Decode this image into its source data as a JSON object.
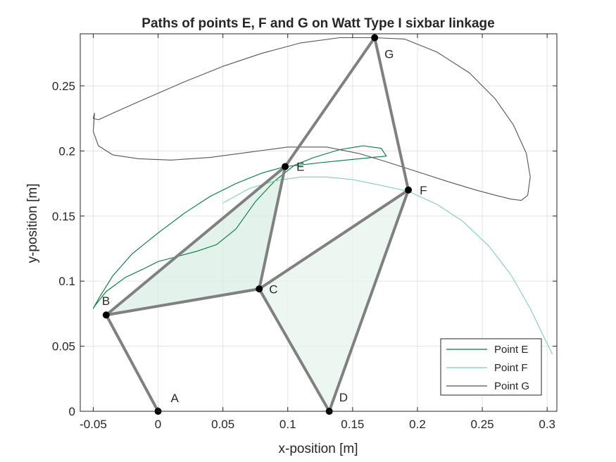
{
  "chart_data": {
    "type": "line",
    "title": "Paths of points E, F and G on Watt Type I sixbar linkage",
    "xlabel": "x-position [m]",
    "ylabel": "y-position [m]",
    "xlim": [
      -0.06,
      0.3075
    ],
    "ylim": [
      0,
      0.29
    ],
    "xticks": [
      -0.05,
      0,
      0.05,
      0.1,
      0.15,
      0.2,
      0.25,
      0.3
    ],
    "xtick_labels": [
      "-0.05",
      "0",
      "0.05",
      "0.1",
      "0.15",
      "0.2",
      "0.25",
      "0.3"
    ],
    "yticks": [
      0,
      0.05,
      0.1,
      0.15,
      0.2,
      0.25
    ],
    "ytick_labels": [
      "0",
      "0.05",
      "0.1",
      "0.15",
      "0.2",
      "0.25"
    ],
    "grid": true,
    "legend_position": "bottom-right",
    "series": [
      {
        "name": "Point E",
        "color": "#007a3d",
        "points": [
          [
            0.098,
            0.188
          ],
          [
            0.08,
            0.183
          ],
          [
            0.06,
            0.175
          ],
          [
            0.04,
            0.165
          ],
          [
            0.02,
            0.152
          ],
          [
            0.0,
            0.137
          ],
          [
            -0.02,
            0.121
          ],
          [
            -0.035,
            0.104
          ],
          [
            -0.045,
            0.088
          ],
          [
            -0.05,
            0.079
          ],
          [
            -0.048,
            0.082
          ],
          [
            -0.04,
            0.092
          ],
          [
            -0.025,
            0.103
          ],
          [
            -0.01,
            0.11
          ],
          [
            0.0,
            0.115
          ],
          [
            0.015,
            0.119
          ],
          [
            0.03,
            0.123
          ],
          [
            0.045,
            0.128
          ],
          [
            0.06,
            0.14
          ],
          [
            0.075,
            0.161
          ],
          [
            0.09,
            0.177
          ],
          [
            0.105,
            0.189
          ],
          [
            0.12,
            0.195
          ],
          [
            0.14,
            0.201
          ],
          [
            0.158,
            0.204
          ],
          [
            0.172,
            0.202
          ],
          [
            0.176,
            0.196
          ],
          [
            0.165,
            0.195
          ],
          [
            0.145,
            0.193
          ],
          [
            0.125,
            0.191
          ],
          [
            0.108,
            0.189
          ],
          [
            0.098,
            0.188
          ]
        ]
      },
      {
        "name": "Point F",
        "color": "#7fd0b0",
        "points": [
          [
            0.05,
            0.16
          ],
          [
            0.07,
            0.171
          ],
          [
            0.09,
            0.177
          ],
          [
            0.11,
            0.18
          ],
          [
            0.13,
            0.18
          ],
          [
            0.15,
            0.178
          ],
          [
            0.17,
            0.174
          ],
          [
            0.193,
            0.169
          ],
          [
            0.215,
            0.159
          ],
          [
            0.235,
            0.146
          ],
          [
            0.255,
            0.127
          ],
          [
            0.272,
            0.105
          ],
          [
            0.287,
            0.079
          ],
          [
            0.298,
            0.056
          ],
          [
            0.304,
            0.044
          ]
        ]
      },
      {
        "name": "Point G",
        "color": "#555555",
        "points": [
          [
            0.167,
            0.287
          ],
          [
            0.14,
            0.287
          ],
          [
            0.11,
            0.283
          ],
          [
            0.08,
            0.275
          ],
          [
            0.05,
            0.265
          ],
          [
            0.02,
            0.253
          ],
          [
            -0.01,
            0.24
          ],
          [
            -0.035,
            0.229
          ],
          [
            -0.046,
            0.224
          ],
          [
            -0.05,
            0.225
          ],
          [
            -0.049,
            0.229
          ],
          [
            -0.05,
            0.215
          ],
          [
            -0.046,
            0.204
          ],
          [
            -0.035,
            0.197
          ],
          [
            -0.015,
            0.194
          ],
          [
            0.01,
            0.193
          ],
          [
            0.04,
            0.195
          ],
          [
            0.07,
            0.199
          ],
          [
            0.1,
            0.203
          ],
          [
            0.13,
            0.203
          ],
          [
            0.155,
            0.198
          ],
          [
            0.175,
            0.192
          ],
          [
            0.2,
            0.184
          ],
          [
            0.225,
            0.176
          ],
          [
            0.245,
            0.17
          ],
          [
            0.26,
            0.166
          ],
          [
            0.272,
            0.163
          ],
          [
            0.28,
            0.162
          ],
          [
            0.285,
            0.166
          ],
          [
            0.287,
            0.18
          ],
          [
            0.284,
            0.198
          ],
          [
            0.274,
            0.22
          ],
          [
            0.26,
            0.24
          ],
          [
            0.24,
            0.26
          ],
          [
            0.215,
            0.276
          ],
          [
            0.19,
            0.286
          ],
          [
            0.167,
            0.287
          ]
        ]
      }
    ],
    "joints": [
      {
        "label": "A",
        "x": 0.0,
        "y": 0.0
      },
      {
        "label": "B",
        "x": -0.04,
        "y": 0.074
      },
      {
        "label": "C",
        "x": 0.078,
        "y": 0.094
      },
      {
        "label": "D",
        "x": 0.132,
        "y": 0.0
      },
      {
        "label": "E",
        "x": 0.098,
        "y": 0.188
      },
      {
        "label": "F",
        "x": 0.193,
        "y": 0.17
      },
      {
        "label": "G",
        "x": 0.167,
        "y": 0.287
      }
    ],
    "links": [
      [
        "A",
        "B"
      ],
      [
        "B",
        "C"
      ],
      [
        "B",
        "E"
      ],
      [
        "C",
        "E"
      ],
      [
        "C",
        "D"
      ],
      [
        "C",
        "F"
      ],
      [
        "D",
        "F"
      ],
      [
        "E",
        "G"
      ],
      [
        "F",
        "G"
      ]
    ],
    "shaded_triangles": [
      {
        "vertices": [
          "B",
          "C",
          "E"
        ],
        "color": "#d9efe5"
      },
      {
        "vertices": [
          "C",
          "D",
          "F"
        ],
        "color": "#e6f4ee"
      }
    ],
    "link_color": "#808080",
    "joint_color": "#000000"
  }
}
